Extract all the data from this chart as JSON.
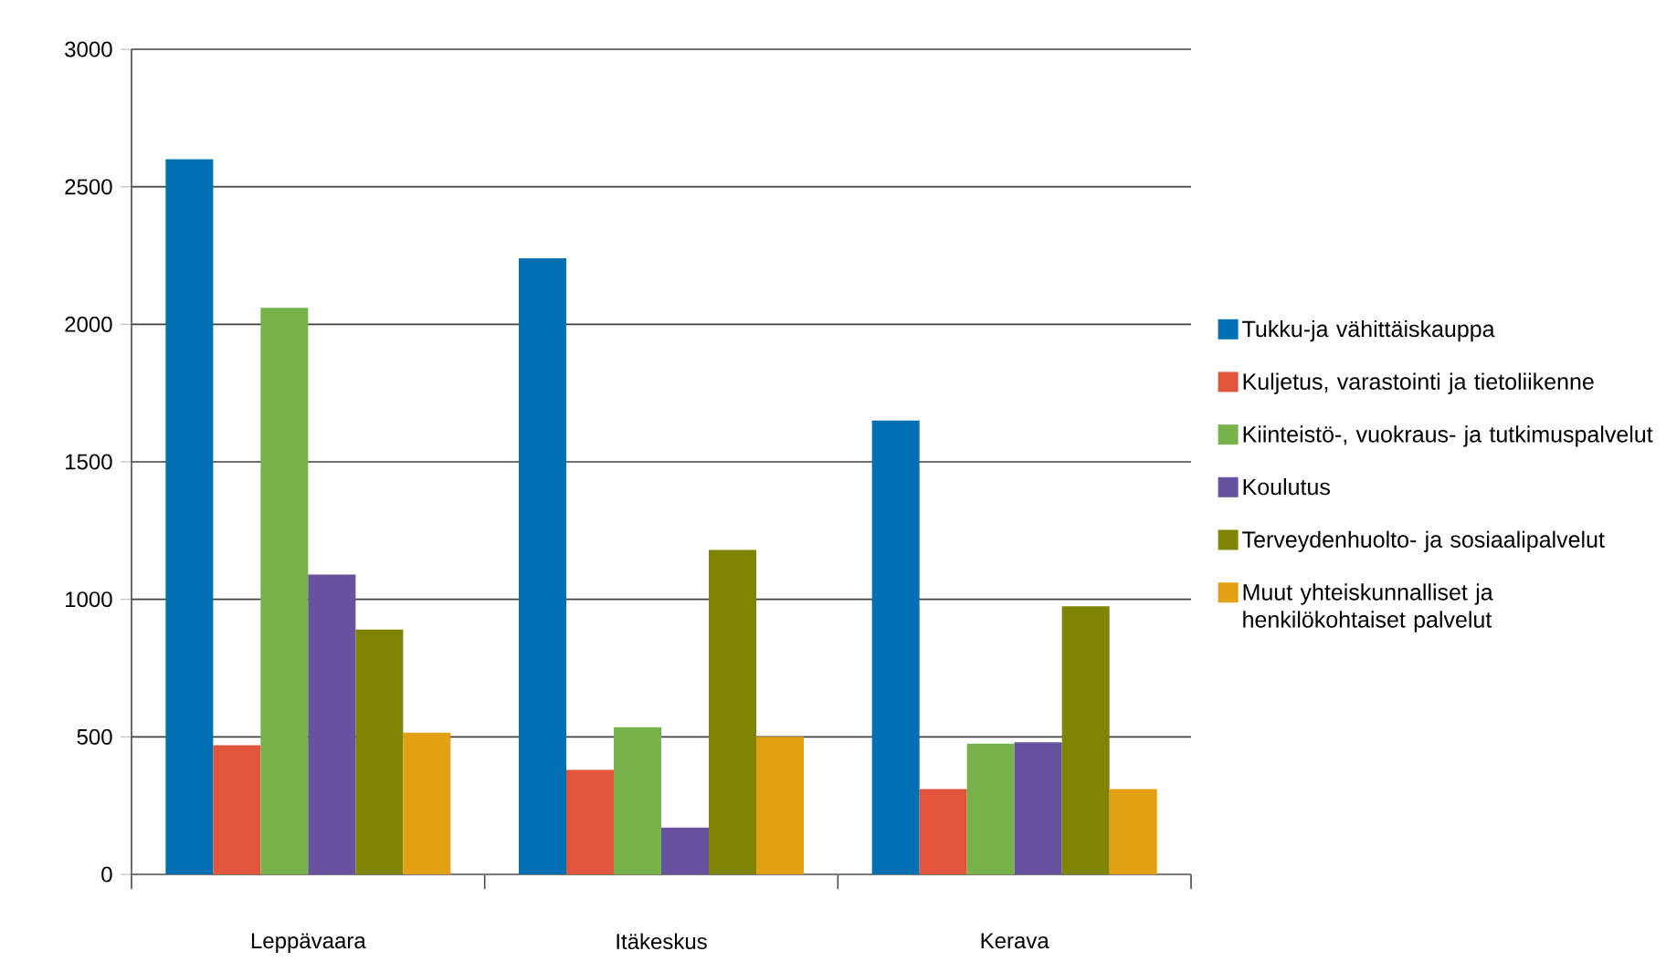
{
  "chart_data": {
    "type": "bar",
    "categories": [
      "Leppävaara",
      "Itäkeskus",
      "Kerava"
    ],
    "series": [
      {
        "name": "Tukku-ja vähittäiskauppa",
        "color": "#0070b3",
        "values": [
          2600,
          2240,
          1650
        ]
      },
      {
        "name": "Kuljetus, varastointi ja tietoliikenne",
        "color": "#e0553b",
        "values": [
          470,
          380,
          310
        ]
      },
      {
        "name": "Kiinteistö-, vuokraus- ja tutkimuspalvelut",
        "color": "#77b24b",
        "values": [
          2060,
          535,
          475
        ]
      },
      {
        "name": "Koulutus",
        "color": "#6752a0",
        "values": [
          1090,
          170,
          480
        ]
      },
      {
        "name": "Terveydenhuolto- ja sosiaalipalvelut",
        "color": "#808404",
        "values": [
          890,
          1180,
          975
        ]
      },
      {
        "name": "Muut yhteiskunnalliset ja henkilökohtaiset palvelut",
        "color": "#e2a013",
        "values": [
          515,
          500,
          310
        ]
      }
    ],
    "ylim": [
      0,
      3000
    ],
    "yticks": [
      0,
      500,
      1000,
      1500,
      2000,
      2500,
      3000
    ],
    "grid": "y",
    "legend": "right"
  }
}
